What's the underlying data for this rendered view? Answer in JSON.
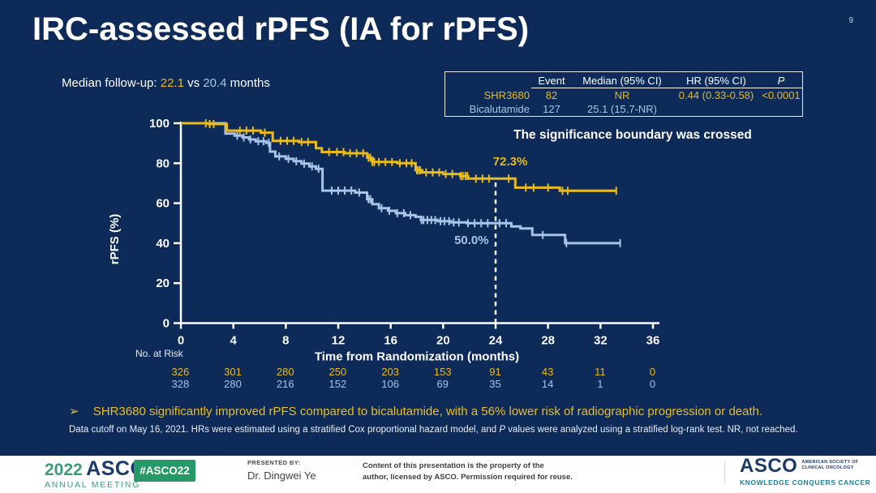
{
  "slide": {
    "page_number": "9",
    "title": "IRC-assessed rPFS (IA for rPFS)",
    "median_followup": {
      "label": "Median follow-up:",
      "value_shr": "22.1",
      "vs": "vs",
      "value_bic": "20.4",
      "unit": "months"
    },
    "significance_note": "The significance boundary was crossed",
    "takeaway": {
      "marker": "➢",
      "text": "SHR3680 significantly improved rPFS compared to bicalutamide, with a 56% lower risk of radiographic progression or death."
    },
    "footnote": {
      "pre": "Data cutoff on May 16, 2021. HRs were estimated using a stratified Cox proportional hazard model, and ",
      "italic": "P",
      "post": " values were analyzed using a stratified log-rank test. NR, not reached."
    }
  },
  "stats_table": {
    "headers": {
      "event": "Event",
      "median": "Median (95% CI)",
      "hr": "HR (95% CI)",
      "p": "P"
    },
    "rows": [
      {
        "name": "SHR3680",
        "event": "82",
        "median": "NR",
        "hr": "0.44 (0.33-0.58)",
        "p": "<0.0001",
        "color": "#E9BB1D"
      },
      {
        "name": "Bicalutamide",
        "event": "127",
        "median": "25.1 (15.7-NR)",
        "hr": "",
        "p": "",
        "color": "#A9C4E8"
      }
    ]
  },
  "chart_data": {
    "type": "line",
    "subtype": "kaplan-meier-step",
    "title": "",
    "xlabel": "Time from Randomization (months)",
    "ylabel": "rPFS (%)",
    "xlim": [
      0,
      36
    ],
    "ylim": [
      0,
      100
    ],
    "xticks": [
      0,
      4,
      8,
      12,
      16,
      20,
      24,
      28,
      32,
      36
    ],
    "yticks": [
      0,
      20,
      40,
      60,
      80,
      100
    ],
    "grid": false,
    "legend": "none",
    "reference_line": {
      "x": 24,
      "to_pct": 72.3,
      "style": "dashed",
      "color": "#FFFFFF"
    },
    "annotations": [
      {
        "text": "72.3%",
        "x": 23.8,
        "y": 78.9,
        "color": "#E9BB1D"
      },
      {
        "text": "50.0%",
        "x": 20.85,
        "y": 39.6,
        "color": "#A9C4E8"
      }
    ],
    "series": [
      {
        "name": "SHR3680",
        "color": "#E9BB1D",
        "landmark_24mo_pct": 72.3,
        "steps": [
          [
            0,
            100
          ],
          [
            2.1,
            100
          ],
          [
            2.1,
            99.6
          ],
          [
            3.5,
            99.6
          ],
          [
            3.5,
            96.3
          ],
          [
            6.1,
            96.3
          ],
          [
            6.1,
            95.3
          ],
          [
            7.0,
            95.3
          ],
          [
            7.0,
            91.2
          ],
          [
            9.0,
            91.2
          ],
          [
            9.0,
            90.6
          ],
          [
            10.3,
            90.6
          ],
          [
            10.3,
            87.5
          ],
          [
            10.75,
            87.5
          ],
          [
            10.75,
            85.6
          ],
          [
            12.5,
            85.6
          ],
          [
            12.5,
            85.0
          ],
          [
            14.2,
            85.0
          ],
          [
            14.2,
            82.8
          ],
          [
            14.6,
            82.8
          ],
          [
            14.6,
            80.6
          ],
          [
            16.5,
            80.6
          ],
          [
            16.5,
            80.0
          ],
          [
            17.9,
            80.0
          ],
          [
            17.9,
            76.5
          ],
          [
            18.4,
            76.5
          ],
          [
            18.4,
            75.4
          ],
          [
            20.0,
            75.4
          ],
          [
            20.0,
            74.6
          ],
          [
            21.3,
            74.6
          ],
          [
            21.3,
            73.6
          ],
          [
            21.9,
            73.6
          ],
          [
            21.9,
            72.3
          ],
          [
            25.5,
            72.3
          ],
          [
            25.5,
            67.8
          ],
          [
            28.9,
            67.8
          ],
          [
            28.9,
            66.2
          ],
          [
            33.2,
            66.2
          ]
        ],
        "censor_months": [
          1.9,
          2.2,
          2.5,
          4.5,
          5.0,
          5.5,
          6.4,
          7.6,
          8.1,
          8.6,
          9.2,
          9.7,
          11.3,
          11.9,
          12.4,
          12.9,
          13.4,
          13.9,
          14.3,
          14.45,
          14.6,
          14.75,
          15.1,
          15.6,
          16.1,
          16.7,
          17.2,
          17.6,
          18.0,
          18.1,
          18.25,
          18.7,
          19.2,
          19.7,
          20.2,
          20.7,
          21.35,
          21.5,
          21.7,
          21.85,
          22.5,
          23.0,
          23.5,
          25.0,
          26.3,
          26.9,
          28.0,
          29.1,
          29.5,
          33.2
        ]
      },
      {
        "name": "Bicalutamide",
        "color": "#A9C4E8",
        "landmark_24mo_pct": 50.0,
        "steps": [
          [
            0,
            100
          ],
          [
            3.4,
            100
          ],
          [
            3.4,
            94.8
          ],
          [
            4.1,
            94.8
          ],
          [
            4.1,
            93.8
          ],
          [
            4.7,
            93.8
          ],
          [
            4.7,
            92.9
          ],
          [
            5.2,
            92.9
          ],
          [
            5.2,
            91.9
          ],
          [
            5.7,
            91.9
          ],
          [
            5.7,
            91.0
          ],
          [
            6.5,
            91.0
          ],
          [
            6.5,
            90.2
          ],
          [
            6.8,
            90.2
          ],
          [
            6.8,
            85.8
          ],
          [
            7.2,
            85.8
          ],
          [
            7.2,
            83.4
          ],
          [
            8.0,
            83.4
          ],
          [
            8.0,
            82.2
          ],
          [
            8.6,
            82.2
          ],
          [
            8.6,
            81.0
          ],
          [
            9.2,
            81.0
          ],
          [
            9.2,
            79.8
          ],
          [
            9.8,
            79.8
          ],
          [
            9.8,
            78.4
          ],
          [
            10.3,
            78.4
          ],
          [
            10.3,
            77.2
          ],
          [
            10.8,
            77.2
          ],
          [
            10.8,
            66.3
          ],
          [
            13.3,
            66.3
          ],
          [
            13.3,
            65.3
          ],
          [
            14.2,
            65.3
          ],
          [
            14.2,
            62.0
          ],
          [
            14.6,
            62.0
          ],
          [
            14.6,
            59.5
          ],
          [
            15.1,
            59.5
          ],
          [
            15.1,
            57.5
          ],
          [
            15.8,
            57.5
          ],
          [
            15.8,
            56.2
          ],
          [
            16.4,
            56.2
          ],
          [
            16.4,
            55.0
          ],
          [
            17.1,
            55.0
          ],
          [
            17.1,
            54.0
          ],
          [
            17.9,
            54.0
          ],
          [
            17.9,
            53.2
          ],
          [
            18.3,
            53.2
          ],
          [
            18.3,
            51.6
          ],
          [
            19.6,
            51.6
          ],
          [
            19.6,
            51.0
          ],
          [
            20.6,
            51.0
          ],
          [
            20.6,
            50.4
          ],
          [
            21.8,
            50.4
          ],
          [
            21.8,
            50.0
          ],
          [
            25.2,
            50.0
          ],
          [
            25.2,
            48.4
          ],
          [
            25.9,
            48.4
          ],
          [
            25.9,
            47.4
          ],
          [
            26.8,
            47.4
          ],
          [
            26.8,
            44.1
          ],
          [
            29.3,
            44.1
          ],
          [
            29.3,
            40.0
          ],
          [
            33.5,
            40.0
          ]
        ],
        "censor_months": [
          4.3,
          4.8,
          5.3,
          5.9,
          6.3,
          6.7,
          7.5,
          8.2,
          8.8,
          9.4,
          10.0,
          10.5,
          11.5,
          12.0,
          12.5,
          13.0,
          13.6,
          14.3,
          14.45,
          15.3,
          15.9,
          16.5,
          17.0,
          17.5,
          18.35,
          18.5,
          18.8,
          19.1,
          19.4,
          19.8,
          20.1,
          20.45,
          20.8,
          21.2,
          21.9,
          22.4,
          22.9,
          23.4,
          24.3,
          24.8,
          27.6,
          29.4,
          33.5
        ]
      }
    ]
  },
  "risk_table": {
    "label": "No. at Risk",
    "timepoints": [
      0,
      4,
      8,
      12,
      16,
      20,
      24,
      28,
      32,
      36
    ],
    "rows": [
      {
        "name": "SHR3680",
        "color": "#E9BB1D",
        "values": [
          "326",
          "301",
          "280",
          "250",
          "203",
          "153",
          "91",
          "43",
          "11",
          "0"
        ]
      },
      {
        "name": "Bicalutamide",
        "color": "#A9C4E8",
        "values": [
          "328",
          "280",
          "216",
          "152",
          "106",
          "69",
          "35",
          "14",
          "1",
          "0"
        ]
      }
    ]
  },
  "footer": {
    "meeting_logo": {
      "year": "2022",
      "org": "ASCO",
      "sub": "ANNUAL MEETING"
    },
    "hashtag": "#ASCO22",
    "presented_by_label": "PRESENTED BY:",
    "presenter": "Dr. Dingwei Ye",
    "permission_line1": "Content of this presentation is the property of the",
    "permission_line2": "author, licensed by ASCO. Permission required for reuse.",
    "asco_logo": {
      "org": "ASCO",
      "society_line1": "AMERICAN SOCIETY OF",
      "society_line2": "CLINICAL ONCOLOGY",
      "tagline": "KNOWLEDGE CONQUERS CANCER"
    }
  },
  "colors": {
    "background": "#0D2A59",
    "accent_yellow": "#E9BB1D",
    "accent_blue": "#A9C4E8",
    "footer_green": "#259A68",
    "footer_teal": "#17849C",
    "asco_navy": "#1B3A6B"
  }
}
